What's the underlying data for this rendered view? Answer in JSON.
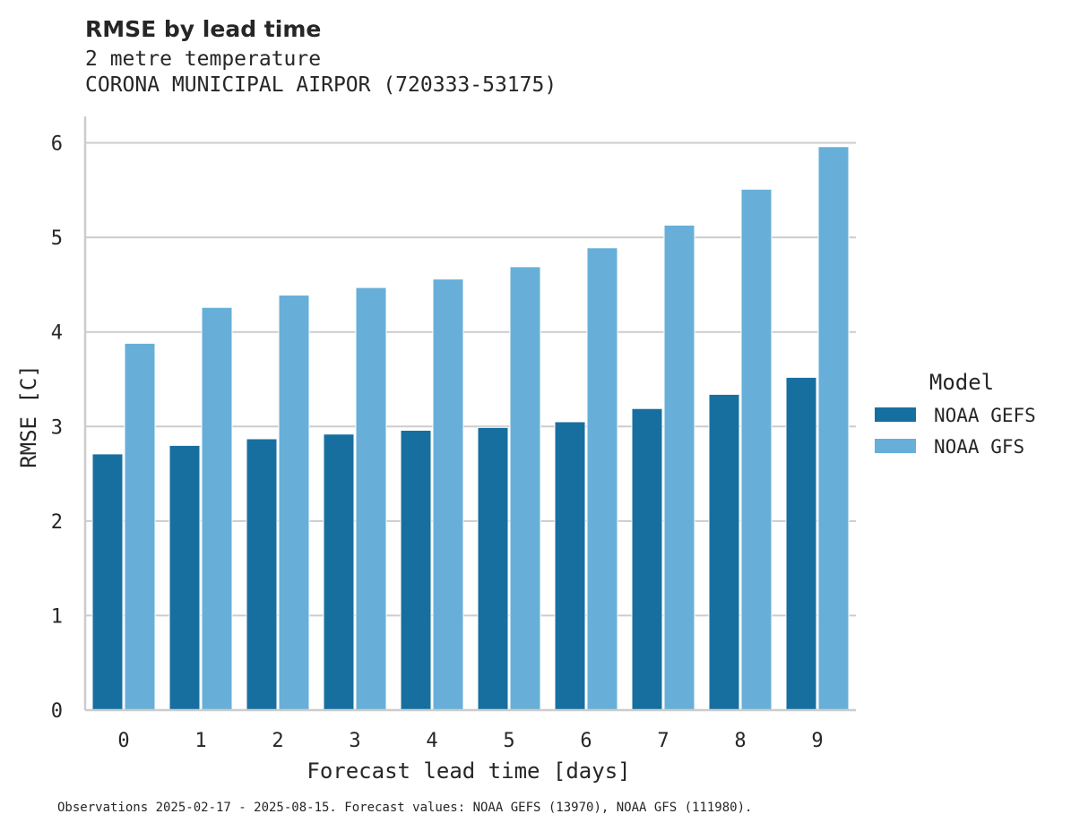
{
  "chart_data": {
    "type": "bar",
    "title": "RMSE by lead time",
    "subtitle_lines": [
      "2 metre temperature",
      "CORONA MUNICIPAL AIRPOR (720333-53175)"
    ],
    "xlabel": "Forecast lead time [days]",
    "ylabel": "RMSE [C]",
    "categories": [
      "0",
      "1",
      "2",
      "3",
      "4",
      "5",
      "6",
      "7",
      "8",
      "9"
    ],
    "ylim": [
      0,
      6.28
    ],
    "yticks": [
      0,
      1,
      2,
      3,
      4,
      5,
      6
    ],
    "grid": "horizontal",
    "legend": {
      "title": "Model",
      "position": "right"
    },
    "series": [
      {
        "name": "NOAA GEFS",
        "color": "#176fa0",
        "values": [
          2.71,
          2.8,
          2.87,
          2.92,
          2.96,
          2.99,
          3.05,
          3.19,
          3.34,
          3.52
        ]
      },
      {
        "name": "NOAA GFS",
        "color": "#67afd8",
        "values": [
          3.88,
          4.26,
          4.39,
          4.47,
          4.56,
          4.69,
          4.89,
          5.13,
          5.51,
          5.96
        ]
      }
    ],
    "footnote": "Observations 2025-02-17 - 2025-08-15. Forecast values: NOAA GEFS (13970), NOAA GFS (111980)."
  }
}
